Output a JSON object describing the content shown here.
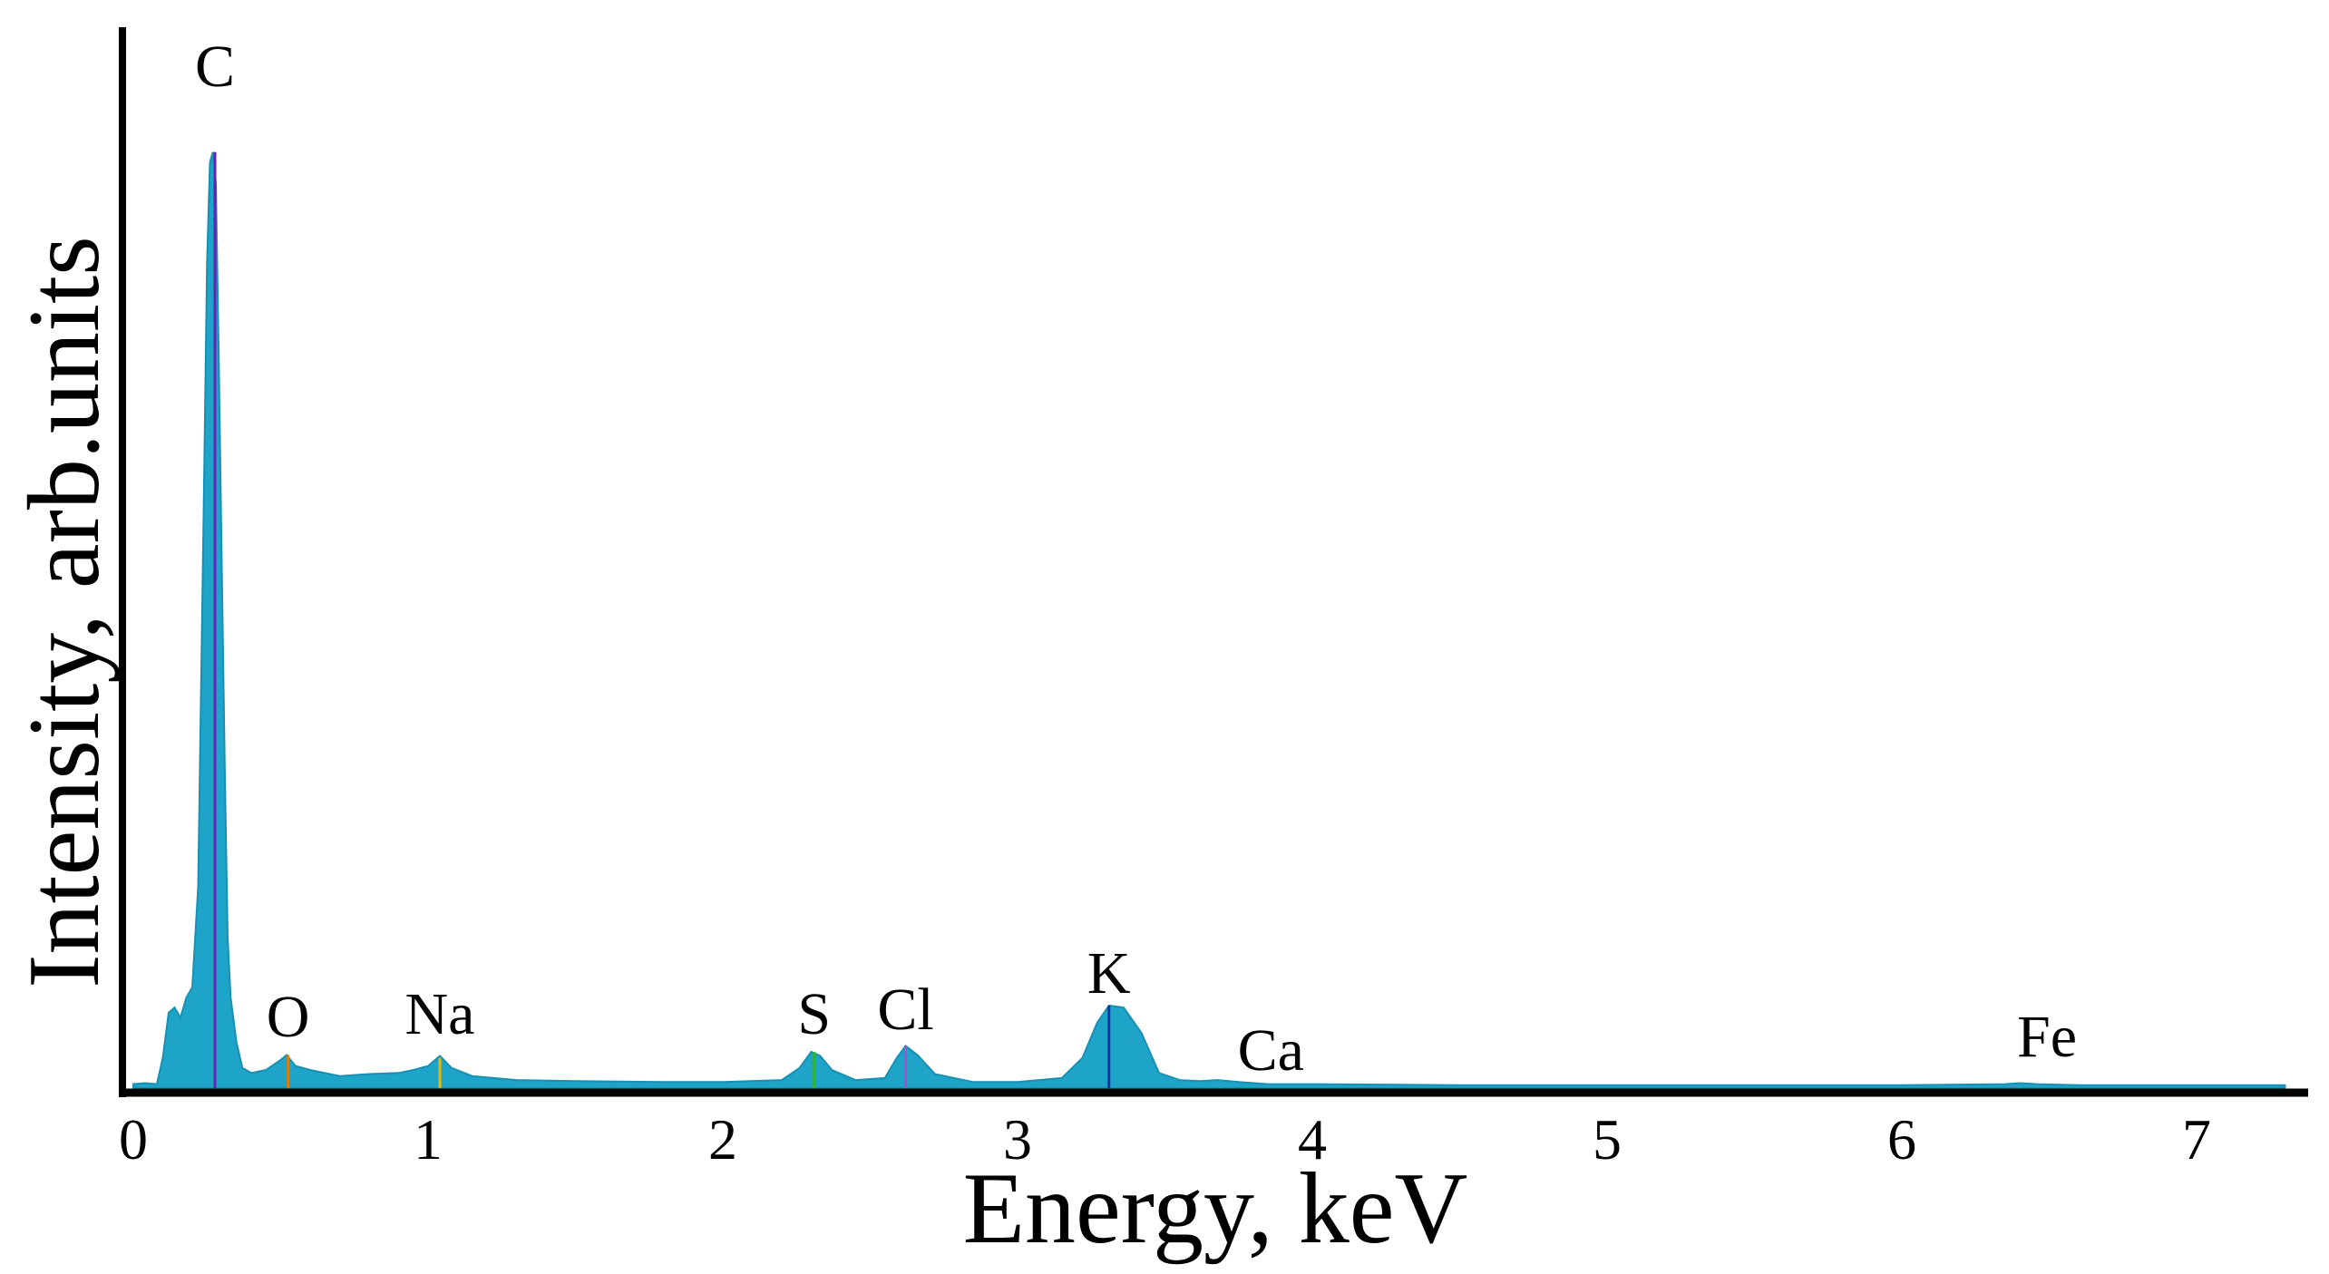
{
  "chart_data": {
    "type": "area",
    "xlabel": "Energy, keV",
    "ylabel": "Intensity, arb.units",
    "xlim": [
      0,
      7.3
    ],
    "ylim": [
      0,
      1.0
    ],
    "x_ticks": [
      0,
      1,
      2,
      3,
      4,
      5,
      6,
      7
    ],
    "grid": false,
    "fill_color": "#1fa4c9",
    "peaks": [
      {
        "label": "C",
        "energy": 0.277,
        "intensity": 0.93,
        "label_color": "#000000",
        "marker_color": "#6a1fb5"
      },
      {
        "label": "O",
        "energy": 0.525,
        "intensity": 0.033,
        "label_color": "#000000",
        "marker_color": "#e07b00"
      },
      {
        "label": "Na",
        "energy": 1.04,
        "intensity": 0.03,
        "label_color": "#000000",
        "marker_color": "#e6b800"
      },
      {
        "label": "S",
        "energy": 2.31,
        "intensity": 0.036,
        "label_color": "#000000",
        "marker_color": "#2fb52f"
      },
      {
        "label": "Cl",
        "energy": 2.62,
        "intensity": 0.042,
        "label_color": "#000000",
        "marker_color": "#d13bd1"
      },
      {
        "label": "K",
        "energy": 3.31,
        "intensity": 0.082,
        "label_color": "#000000",
        "marker_color": "#1a2fb0"
      },
      {
        "label": "Ca",
        "energy": 3.69,
        "intensity": 0.008,
        "label_color": "#000000",
        "marker_color": "#1fa4c9"
      },
      {
        "label": "Fe",
        "energy": 6.4,
        "intensity": 0.005,
        "label_color": "#000000",
        "marker_color": "#1fa4c9"
      }
    ],
    "spectrum": {
      "x": [
        0.0,
        0.04,
        0.08,
        0.1,
        0.12,
        0.14,
        0.16,
        0.18,
        0.2,
        0.22,
        0.24,
        0.25,
        0.26,
        0.27,
        0.28,
        0.29,
        0.3,
        0.31,
        0.32,
        0.33,
        0.35,
        0.37,
        0.4,
        0.45,
        0.5,
        0.52,
        0.55,
        0.6,
        0.7,
        0.8,
        0.9,
        0.95,
        1.0,
        1.04,
        1.08,
        1.15,
        1.3,
        1.5,
        1.8,
        2.0,
        2.2,
        2.26,
        2.3,
        2.33,
        2.37,
        2.45,
        2.55,
        2.59,
        2.62,
        2.66,
        2.72,
        2.85,
        3.0,
        3.15,
        3.22,
        3.27,
        3.31,
        3.36,
        3.42,
        3.48,
        3.55,
        3.62,
        3.68,
        3.75,
        3.85,
        4.0,
        4.5,
        5.0,
        5.5,
        6.0,
        6.35,
        6.4,
        6.46,
        6.6,
        7.0,
        7.3
      ],
      "y": [
        0.004,
        0.005,
        0.004,
        0.03,
        0.075,
        0.08,
        0.07,
        0.09,
        0.1,
        0.2,
        0.6,
        0.82,
        0.92,
        0.93,
        0.9,
        0.72,
        0.52,
        0.32,
        0.15,
        0.09,
        0.045,
        0.02,
        0.015,
        0.018,
        0.028,
        0.033,
        0.022,
        0.018,
        0.012,
        0.014,
        0.015,
        0.018,
        0.022,
        0.032,
        0.02,
        0.012,
        0.008,
        0.007,
        0.006,
        0.006,
        0.008,
        0.02,
        0.036,
        0.032,
        0.018,
        0.008,
        0.01,
        0.03,
        0.042,
        0.033,
        0.014,
        0.006,
        0.006,
        0.01,
        0.03,
        0.065,
        0.082,
        0.08,
        0.055,
        0.015,
        0.008,
        0.007,
        0.008,
        0.006,
        0.004,
        0.004,
        0.003,
        0.003,
        0.003,
        0.003,
        0.004,
        0.005,
        0.004,
        0.003,
        0.003,
        0.003
      ]
    }
  }
}
